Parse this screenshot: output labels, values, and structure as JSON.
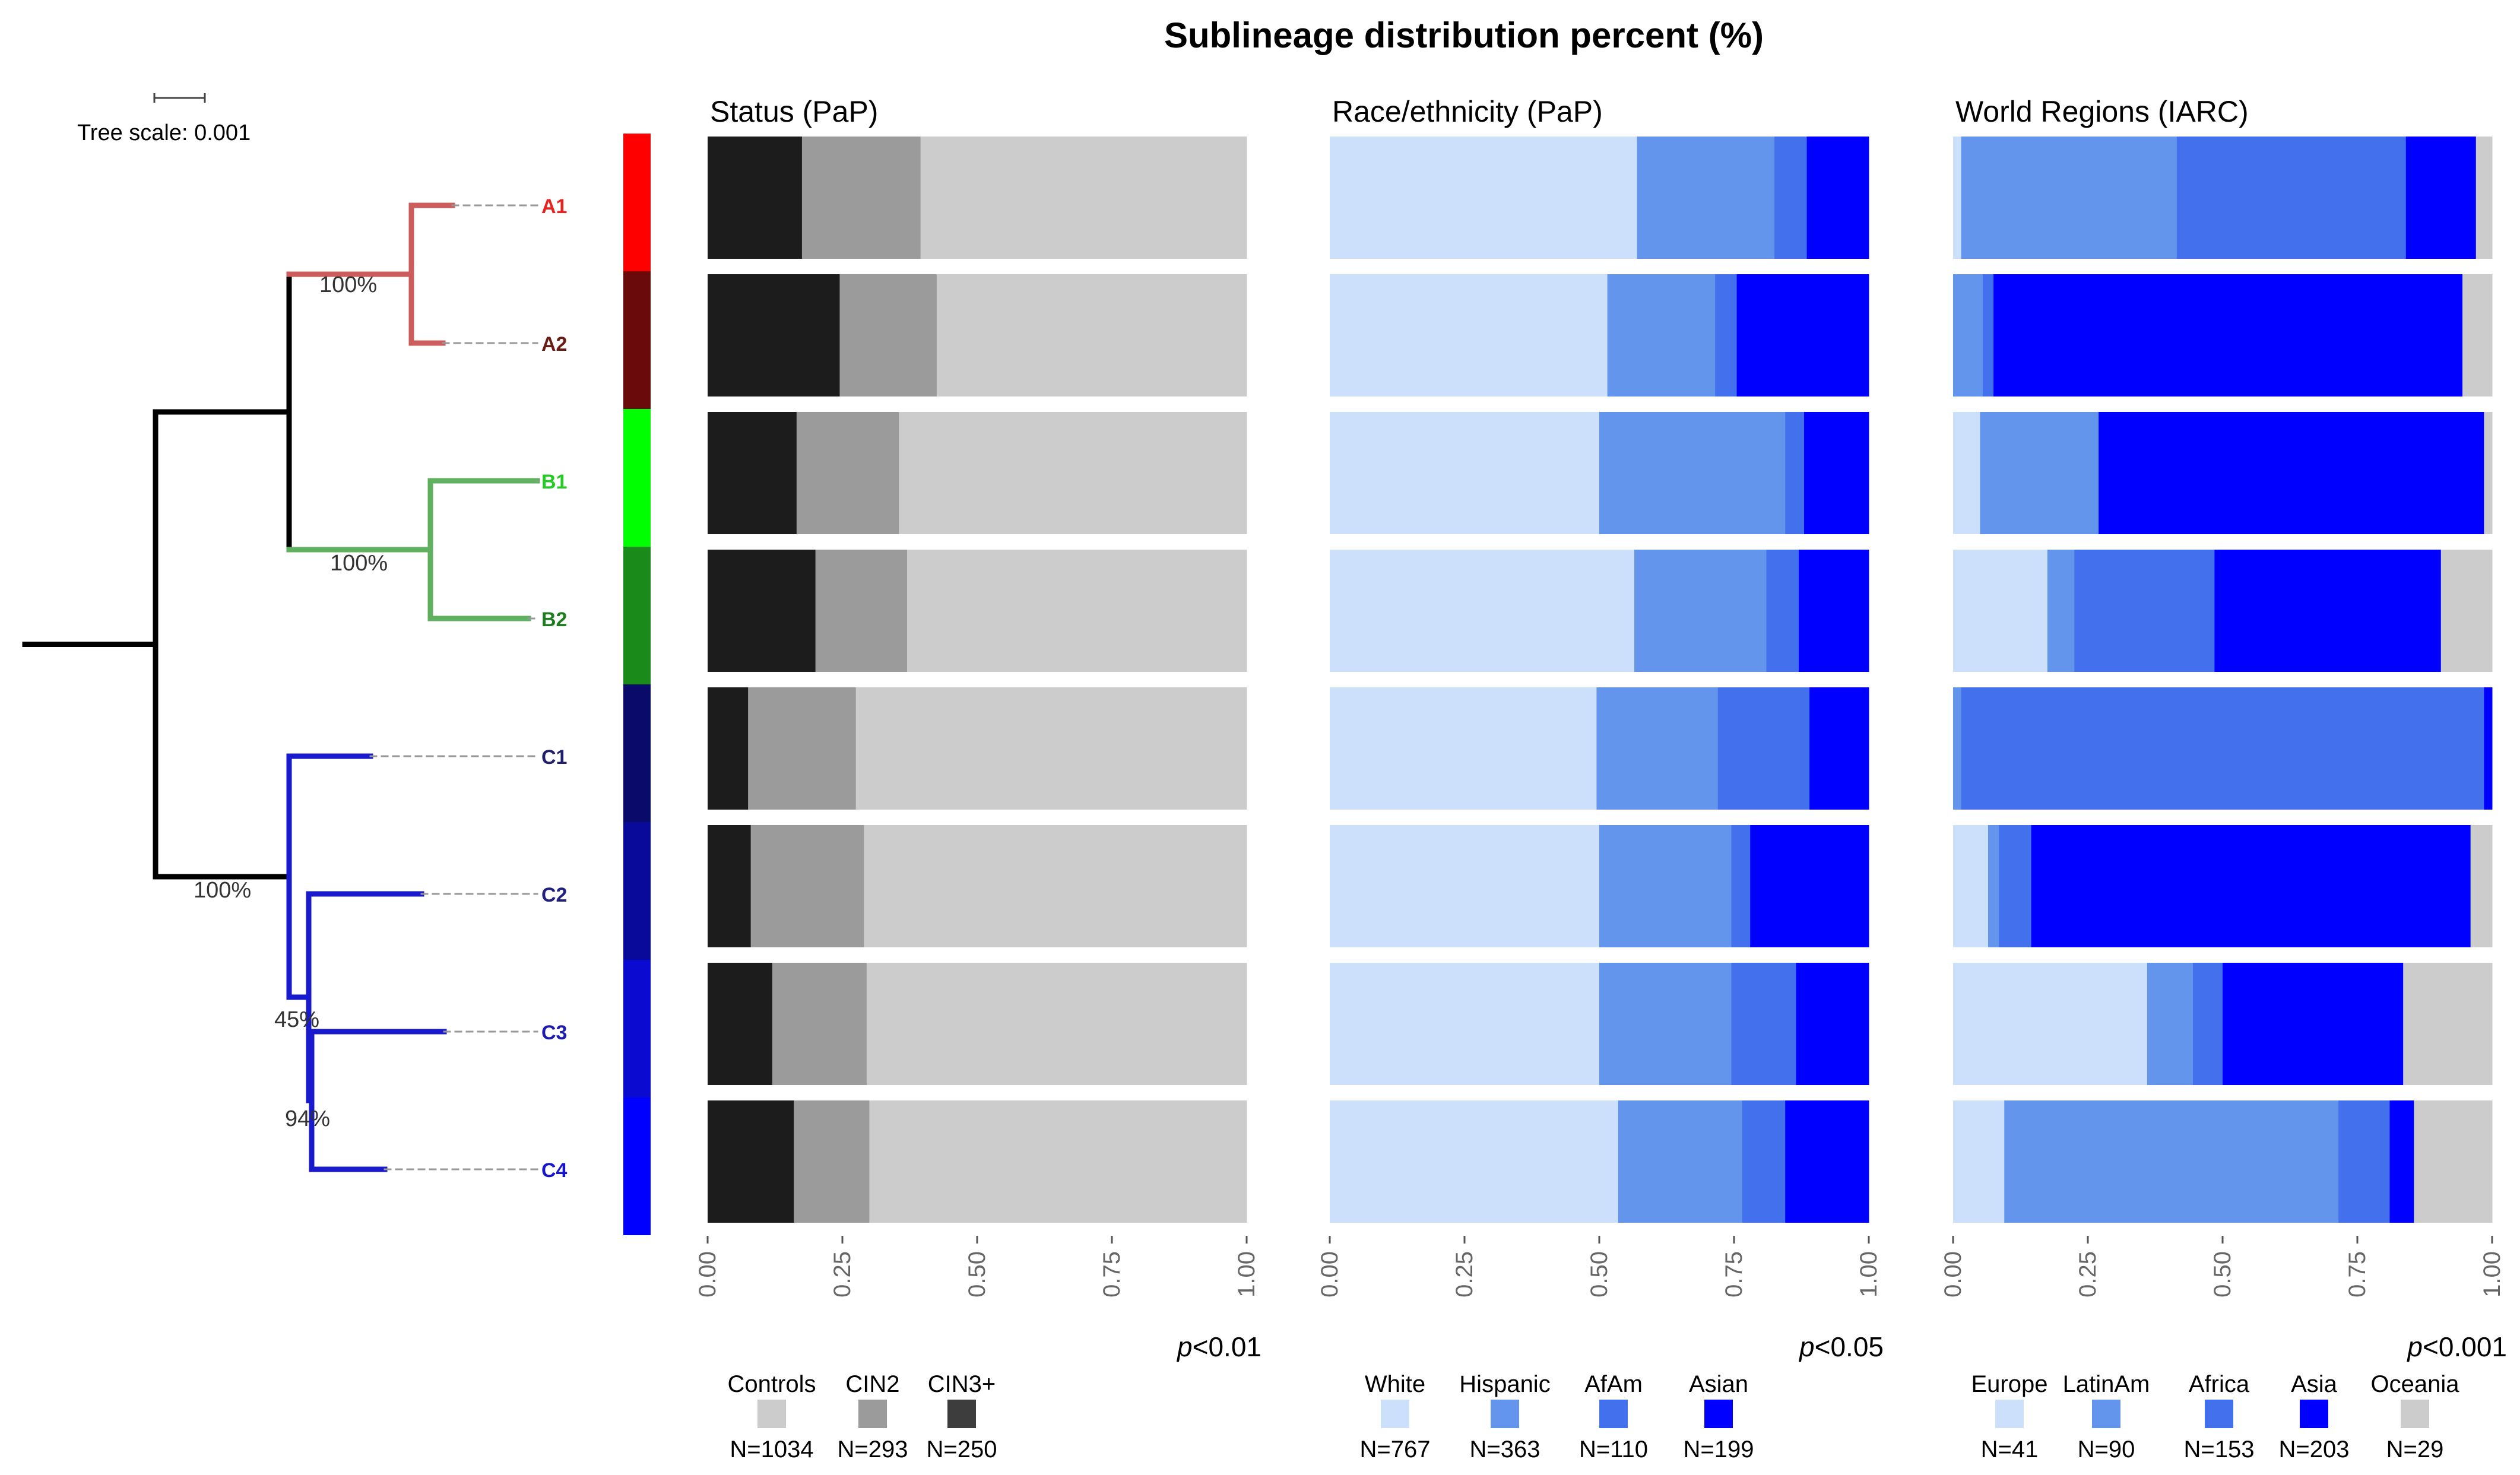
{
  "title": "Sublineage distribution percent (%)",
  "tree": {
    "scale_label": "Tree scale: 0.001",
    "leaves": [
      {
        "label": "A1",
        "color": "#e8231f"
      },
      {
        "label": "A2",
        "color": "#6b1a14"
      },
      {
        "label": "B1",
        "color": "#22cc22"
      },
      {
        "label": "B2",
        "color": "#1e7d1e"
      },
      {
        "label": "C1",
        "color": "#20206a"
      },
      {
        "label": "C2",
        "color": "#202080"
      },
      {
        "label": "C3",
        "color": "#1a1ab0"
      },
      {
        "label": "C4",
        "color": "#1515cc"
      }
    ],
    "support": [
      {
        "label": "100%",
        "clade": "A"
      },
      {
        "label": "100%",
        "clade": "B"
      },
      {
        "label": "100%",
        "clade": "C"
      },
      {
        "label": "45%",
        "clade": "C2-C4"
      },
      {
        "label": "94%",
        "clade": "C3-C4"
      }
    ],
    "strip_colors": [
      "#ff0000",
      "#6b0a0a",
      "#00ff00",
      "#1a8a1a",
      "#0a0a6b",
      "#0a0a9a",
      "#0a0ad0",
      "#0000ff"
    ],
    "clade_colors": {
      "A": "#cd5c5c",
      "B": "#5fb05f",
      "C": "#1a1acd",
      "root": "#000000"
    }
  },
  "chart_data": [
    {
      "type": "bar",
      "orientation": "horizontal",
      "stacked": true,
      "title": "Status (PaP)",
      "categories": [
        "A1",
        "A2",
        "B1",
        "B2",
        "C1",
        "C2",
        "C3",
        "C4"
      ],
      "xlim": [
        0,
        1
      ],
      "x_ticks": [
        "0.00",
        "0.25",
        "0.50",
        "0.75",
        "1.00"
      ],
      "pvalue": {
        "prefix": "p",
        "rest": "<0.01"
      },
      "series": [
        {
          "name": "CIN3+",
          "color": "#1c1c1c",
          "values": [
            0.175,
            0.245,
            0.165,
            0.2,
            0.075,
            0.08,
            0.12,
            0.16
          ]
        },
        {
          "name": "CIN2",
          "color": "#9b9b9b",
          "values": [
            0.22,
            0.18,
            0.19,
            0.17,
            0.2,
            0.21,
            0.175,
            0.14
          ]
        },
        {
          "name": "Controls",
          "color": "#cccccc",
          "values": [
            0.605,
            0.575,
            0.645,
            0.63,
            0.725,
            0.71,
            0.705,
            0.7
          ]
        }
      ],
      "legend": [
        {
          "name": "Controls",
          "n": "N=1034",
          "color": "#cccccc"
        },
        {
          "name": "CIN2",
          "n": "N=293",
          "color": "#9b9b9b"
        },
        {
          "name": "CIN3+",
          "n": "N=250",
          "color": "#3d3d3d"
        }
      ]
    },
    {
      "type": "bar",
      "orientation": "horizontal",
      "stacked": true,
      "title": "Race/ethnicity (PaP)",
      "categories": [
        "A1",
        "A2",
        "B1",
        "B2",
        "C1",
        "C2",
        "C3",
        "C4"
      ],
      "xlim": [
        0,
        1
      ],
      "x_ticks": [
        "0.00",
        "0.25",
        "0.50",
        "0.75",
        "1.00"
      ],
      "pvalue": {
        "prefix": "p",
        "rest": "<0.05"
      },
      "series": [
        {
          "name": "White",
          "color": "#cce0fc",
          "values": [
            0.57,
            0.515,
            0.5,
            0.565,
            0.495,
            0.5,
            0.5,
            0.535
          ]
        },
        {
          "name": "Hispanic",
          "color": "#6495ed",
          "values": [
            0.255,
            0.2,
            0.345,
            0.245,
            0.225,
            0.245,
            0.245,
            0.23
          ]
        },
        {
          "name": "AfAm",
          "color": "#4370ec",
          "values": [
            0.06,
            0.04,
            0.035,
            0.06,
            0.17,
            0.035,
            0.12,
            0.08
          ]
        },
        {
          "name": "Asian",
          "color": "#0000ff",
          "values": [
            0.115,
            0.245,
            0.12,
            0.13,
            0.11,
            0.22,
            0.135,
            0.155
          ]
        }
      ],
      "legend": [
        {
          "name": "White",
          "n": "N=767",
          "color": "#cce0fc"
        },
        {
          "name": "Hispanic",
          "n": "N=363",
          "color": "#6495ed"
        },
        {
          "name": "AfAm",
          "n": "N=110",
          "color": "#4370ec"
        },
        {
          "name": "Asian",
          "n": "N=199",
          "color": "#0000ff"
        }
      ]
    },
    {
      "type": "bar",
      "orientation": "horizontal",
      "stacked": true,
      "title": "World Regions (IARC)",
      "categories": [
        "A1",
        "A2",
        "B1",
        "B2",
        "C1",
        "C2",
        "C3",
        "C4"
      ],
      "xlim": [
        0,
        1
      ],
      "x_ticks": [
        "0.00",
        "0.25",
        "0.50",
        "0.75",
        "1.00"
      ],
      "pvalue": {
        "prefix": "p",
        "rest": "<0.001"
      },
      "series": [
        {
          "name": "Europe",
          "color": "#cce0fc",
          "values": [
            0.015,
            0.0,
            0.05,
            0.175,
            0.0,
            0.065,
            0.36,
            0.095
          ]
        },
        {
          "name": "LatinAm",
          "color": "#6495ed",
          "values": [
            0.4,
            0.055,
            0.22,
            0.05,
            0.015,
            0.02,
            0.085,
            0.62
          ]
        },
        {
          "name": "Africa",
          "color": "#4370ec",
          "values": [
            0.425,
            0.02,
            0.0,
            0.26,
            0.97,
            0.06,
            0.055,
            0.095
          ]
        },
        {
          "name": "Asia",
          "color": "#0000ff",
          "values": [
            0.13,
            0.87,
            0.715,
            0.42,
            0.015,
            0.815,
            0.335,
            0.045
          ]
        },
        {
          "name": "Oceania",
          "color": "#cccccc",
          "values": [
            0.03,
            0.055,
            0.015,
            0.095,
            0.0,
            0.04,
            0.165,
            0.145
          ]
        }
      ],
      "legend": [
        {
          "name": "Europe",
          "n": "N=41",
          "color": "#cce0fc"
        },
        {
          "name": "LatinAm",
          "n": "N=90",
          "color": "#6495ed"
        },
        {
          "name": "Africa",
          "n": "N=153",
          "color": "#4370ec"
        },
        {
          "name": "Asia",
          "n": "N=203",
          "color": "#0000ff"
        },
        {
          "name": "Oceania",
          "n": "N=29",
          "color": "#cccccc"
        }
      ]
    }
  ]
}
